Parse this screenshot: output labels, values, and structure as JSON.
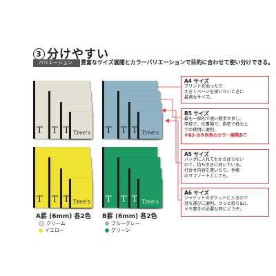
{
  "header": {
    "number": "3",
    "title": "分けやすい",
    "banner": "バリエーション",
    "subtitle": "豊富なサイズ展開とカラーバリエーションで目的に合わせて使い分けできる。"
  },
  "notebook_brand": "Tree's",
  "notebook_short": "T",
  "groups": {
    "a": {
      "label": "A罫 (6mm) 各2色",
      "colors": [
        {
          "name": "クリーム",
          "hex": "#e4e0d3"
        },
        {
          "name": "イエロー",
          "hex": "#f1e231"
        }
      ]
    },
    "b": {
      "label": "B罫 (6mm) 各2色",
      "colors": [
        {
          "name": "ブルーグレー",
          "hex": "#8fb3c4"
        },
        {
          "name": "グリーン",
          "hex": "#1d9a63"
        }
      ]
    }
  },
  "callouts": {
    "a4": {
      "title": "A4 サイズ",
      "lines": [
        "プリントを貼ったり",
        "大きくページを使いたいときに",
        "最適なサイズ。"
      ]
    },
    "b5": {
      "title": "B5 サイズ",
      "lines": [
        "最も一般的で使い勝手が良し。",
        "学校で、仕事場で、自宅で机の上",
        "での使用に便利。"
      ],
      "note": "※B5 のみ別色のカラー展開あり"
    },
    "a5": {
      "title": "A5 サイズ",
      "lines": [
        "バッグに入れてもかさばらない",
        "ので、持ち歩きに向いている。",
        "打合せ内容を書いたり、手帳",
        "のサブノートとしても。"
      ]
    },
    "a6": {
      "title": "A6 サイズ",
      "lines": [
        "ジャケットのポケットに入るので",
        "持ち運びに便利。さっと取り出し",
        "メモ書きが必要な時にどうぞ。"
      ]
    }
  },
  "accent_color": "#e83a3a"
}
